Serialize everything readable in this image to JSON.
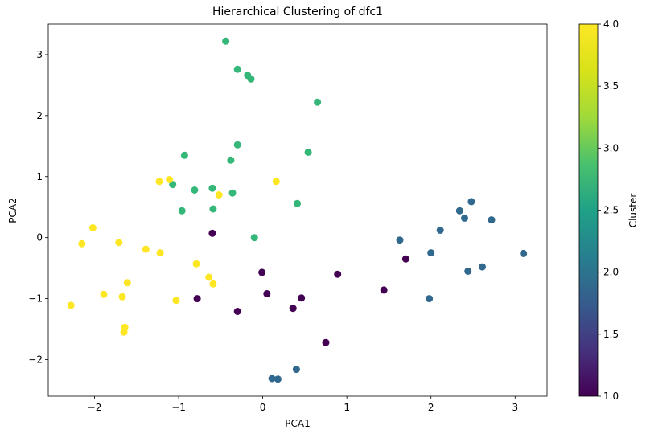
{
  "chart_data": {
    "type": "scatter",
    "title": "Hierarchical Clustering of dfc1",
    "xlabel": "PCA1",
    "ylabel": "PCA2",
    "xlim": [
      -2.55,
      3.38
    ],
    "ylim": [
      -2.6,
      3.5
    ],
    "xticks": [
      -2,
      -1,
      0,
      1,
      2,
      3
    ],
    "xtick_labels": [
      "−2",
      "−1",
      "0",
      "1",
      "2",
      "3"
    ],
    "yticks": [
      -2,
      -1,
      0,
      1,
      2,
      3
    ],
    "ytick_labels": [
      "−2",
      "−1",
      "0",
      "1",
      "2",
      "3"
    ],
    "grid": false,
    "colormap": "viridis",
    "colorbar": {
      "label": "Cluster",
      "range": [
        1.0,
        4.0
      ],
      "ticks": [
        1.0,
        1.5,
        2.0,
        2.5,
        3.0,
        3.5,
        4.0
      ],
      "tick_labels": [
        "1.0",
        "1.5",
        "2.0",
        "2.5",
        "3.0",
        "3.5",
        "4.0"
      ]
    },
    "cluster_colors": {
      "1": "#440154",
      "2": "#31688e",
      "3": "#35b779",
      "4": "#fde725"
    },
    "points": [
      {
        "x": -0.44,
        "y": 3.22,
        "c": 3
      },
      {
        "x": -0.3,
        "y": 2.76,
        "c": 3
      },
      {
        "x": -0.18,
        "y": 2.66,
        "c": 3
      },
      {
        "x": -0.14,
        "y": 2.6,
        "c": 3
      },
      {
        "x": 0.65,
        "y": 2.22,
        "c": 3
      },
      {
        "x": -0.3,
        "y": 1.52,
        "c": 3
      },
      {
        "x": 0.54,
        "y": 1.4,
        "c": 3
      },
      {
        "x": -0.93,
        "y": 1.35,
        "c": 3
      },
      {
        "x": -0.38,
        "y": 1.27,
        "c": 3
      },
      {
        "x": -1.07,
        "y": 0.87,
        "c": 3
      },
      {
        "x": -0.81,
        "y": 0.78,
        "c": 3
      },
      {
        "x": -0.6,
        "y": 0.81,
        "c": 3
      },
      {
        "x": -0.36,
        "y": 0.73,
        "c": 3
      },
      {
        "x": 0.41,
        "y": 0.56,
        "c": 3
      },
      {
        "x": -0.96,
        "y": 0.44,
        "c": 3
      },
      {
        "x": -0.59,
        "y": 0.47,
        "c": 3
      },
      {
        "x": -0.1,
        "y": 0.0,
        "c": 3
      },
      {
        "x": -1.23,
        "y": 0.92,
        "c": 4
      },
      {
        "x": -1.11,
        "y": 0.95,
        "c": 4
      },
      {
        "x": 0.16,
        "y": 0.92,
        "c": 4
      },
      {
        "x": -0.52,
        "y": 0.7,
        "c": 4
      },
      {
        "x": -2.02,
        "y": 0.16,
        "c": 4
      },
      {
        "x": -2.15,
        "y": -0.1,
        "c": 4
      },
      {
        "x": -1.71,
        "y": -0.08,
        "c": 4
      },
      {
        "x": -1.39,
        "y": -0.19,
        "c": 4
      },
      {
        "x": -1.22,
        "y": -0.25,
        "c": 4
      },
      {
        "x": -0.79,
        "y": -0.43,
        "c": 4
      },
      {
        "x": -0.64,
        "y": -0.65,
        "c": 4
      },
      {
        "x": -0.59,
        "y": -0.76,
        "c": 4
      },
      {
        "x": -1.61,
        "y": -0.74,
        "c": 4
      },
      {
        "x": -1.89,
        "y": -0.93,
        "c": 4
      },
      {
        "x": -1.67,
        "y": -0.97,
        "c": 4
      },
      {
        "x": -1.03,
        "y": -1.03,
        "c": 4
      },
      {
        "x": -2.28,
        "y": -1.11,
        "c": 4
      },
      {
        "x": -1.64,
        "y": -1.47,
        "c": 4
      },
      {
        "x": -1.65,
        "y": -1.55,
        "c": 4
      },
      {
        "x": -0.6,
        "y": 0.07,
        "c": 1
      },
      {
        "x": -0.01,
        "y": -0.57,
        "c": 1
      },
      {
        "x": 0.89,
        "y": -0.6,
        "c": 1
      },
      {
        "x": 1.7,
        "y": -0.35,
        "c": 1
      },
      {
        "x": 1.44,
        "y": -0.86,
        "c": 1
      },
      {
        "x": -0.78,
        "y": -1.0,
        "c": 1
      },
      {
        "x": 0.05,
        "y": -0.92,
        "c": 1
      },
      {
        "x": 0.46,
        "y": -0.99,
        "c": 1
      },
      {
        "x": 0.36,
        "y": -1.16,
        "c": 1
      },
      {
        "x": -0.3,
        "y": -1.21,
        "c": 1
      },
      {
        "x": 0.75,
        "y": -1.72,
        "c": 1
      },
      {
        "x": 2.48,
        "y": 0.59,
        "c": 2
      },
      {
        "x": 2.34,
        "y": 0.44,
        "c": 2
      },
      {
        "x": 2.4,
        "y": 0.32,
        "c": 2
      },
      {
        "x": 2.72,
        "y": 0.29,
        "c": 2
      },
      {
        "x": 2.11,
        "y": 0.12,
        "c": 2
      },
      {
        "x": 1.63,
        "y": -0.04,
        "c": 2
      },
      {
        "x": 2.0,
        "y": -0.25,
        "c": 2
      },
      {
        "x": 3.1,
        "y": -0.26,
        "c": 2
      },
      {
        "x": 2.61,
        "y": -0.48,
        "c": 2
      },
      {
        "x": 2.44,
        "y": -0.55,
        "c": 2
      },
      {
        "x": 1.98,
        "y": -1.0,
        "c": 2
      },
      {
        "x": 0.4,
        "y": -2.16,
        "c": 2
      },
      {
        "x": 0.11,
        "y": -2.31,
        "c": 2
      },
      {
        "x": 0.18,
        "y": -2.32,
        "c": 2
      }
    ]
  }
}
